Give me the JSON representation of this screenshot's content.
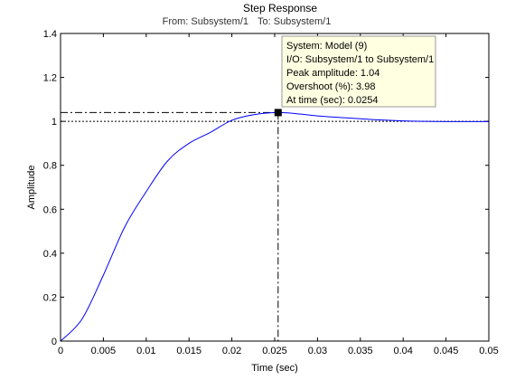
{
  "chart_data": {
    "type": "line",
    "title": "Step Response",
    "subtitle_from_label": "From: Subsystem/1",
    "subtitle_to_label": "To: Subsystem/1",
    "xlabel": "Time (sec)",
    "ylabel": "Amplitude",
    "xlim": [
      0,
      0.05
    ],
    "ylim": [
      0,
      1.4
    ],
    "xticks": [
      "0",
      "0.005",
      "0.01",
      "0.015",
      "0.02",
      "0.025",
      "0.03",
      "0.035",
      "0.04",
      "0.045",
      "0.05"
    ],
    "xtick_values": [
      0,
      0.005,
      0.01,
      0.015,
      0.02,
      0.025,
      0.03,
      0.035,
      0.04,
      0.045,
      0.05
    ],
    "yticks": [
      "0",
      "0.2",
      "0.4",
      "0.6",
      "0.8",
      "1",
      "1.2",
      "1.4"
    ],
    "ytick_values": [
      0,
      0.2,
      0.4,
      0.6,
      0.8,
      1.0,
      1.2,
      1.4
    ],
    "grid": false,
    "series": [
      {
        "color": "#0000ff",
        "x": [
          0,
          0.0025,
          0.005,
          0.0075,
          0.01,
          0.0125,
          0.015,
          0.0175,
          0.02,
          0.0225,
          0.0254,
          0.0275,
          0.03,
          0.0325,
          0.035,
          0.0375,
          0.04,
          0.0425,
          0.045,
          0.0475,
          0.05
        ],
        "y": [
          0,
          0.1,
          0.3,
          0.52,
          0.68,
          0.82,
          0.9,
          0.95,
          1.005,
          1.03,
          1.04,
          1.035,
          1.025,
          1.018,
          1.012,
          1.006,
          1.002,
          1.0,
          0.999,
          0.999,
          0.999
        ]
      }
    ],
    "steady_state": 1.0,
    "peak": {
      "x": 0.0254,
      "y": 1.04
    },
    "datatip": {
      "lines": [
        "System: Model (9)",
        "I/O: Subsystem/1 to Subsystem/1",
        "Peak amplitude: 1.04",
        "Overshoot (%): 3.98",
        "At time (sec): 0.0254"
      ]
    },
    "colors": {
      "line": "#0000ff",
      "datatip_bg": "#ffffe1",
      "datatip_border": "#999999"
    }
  }
}
